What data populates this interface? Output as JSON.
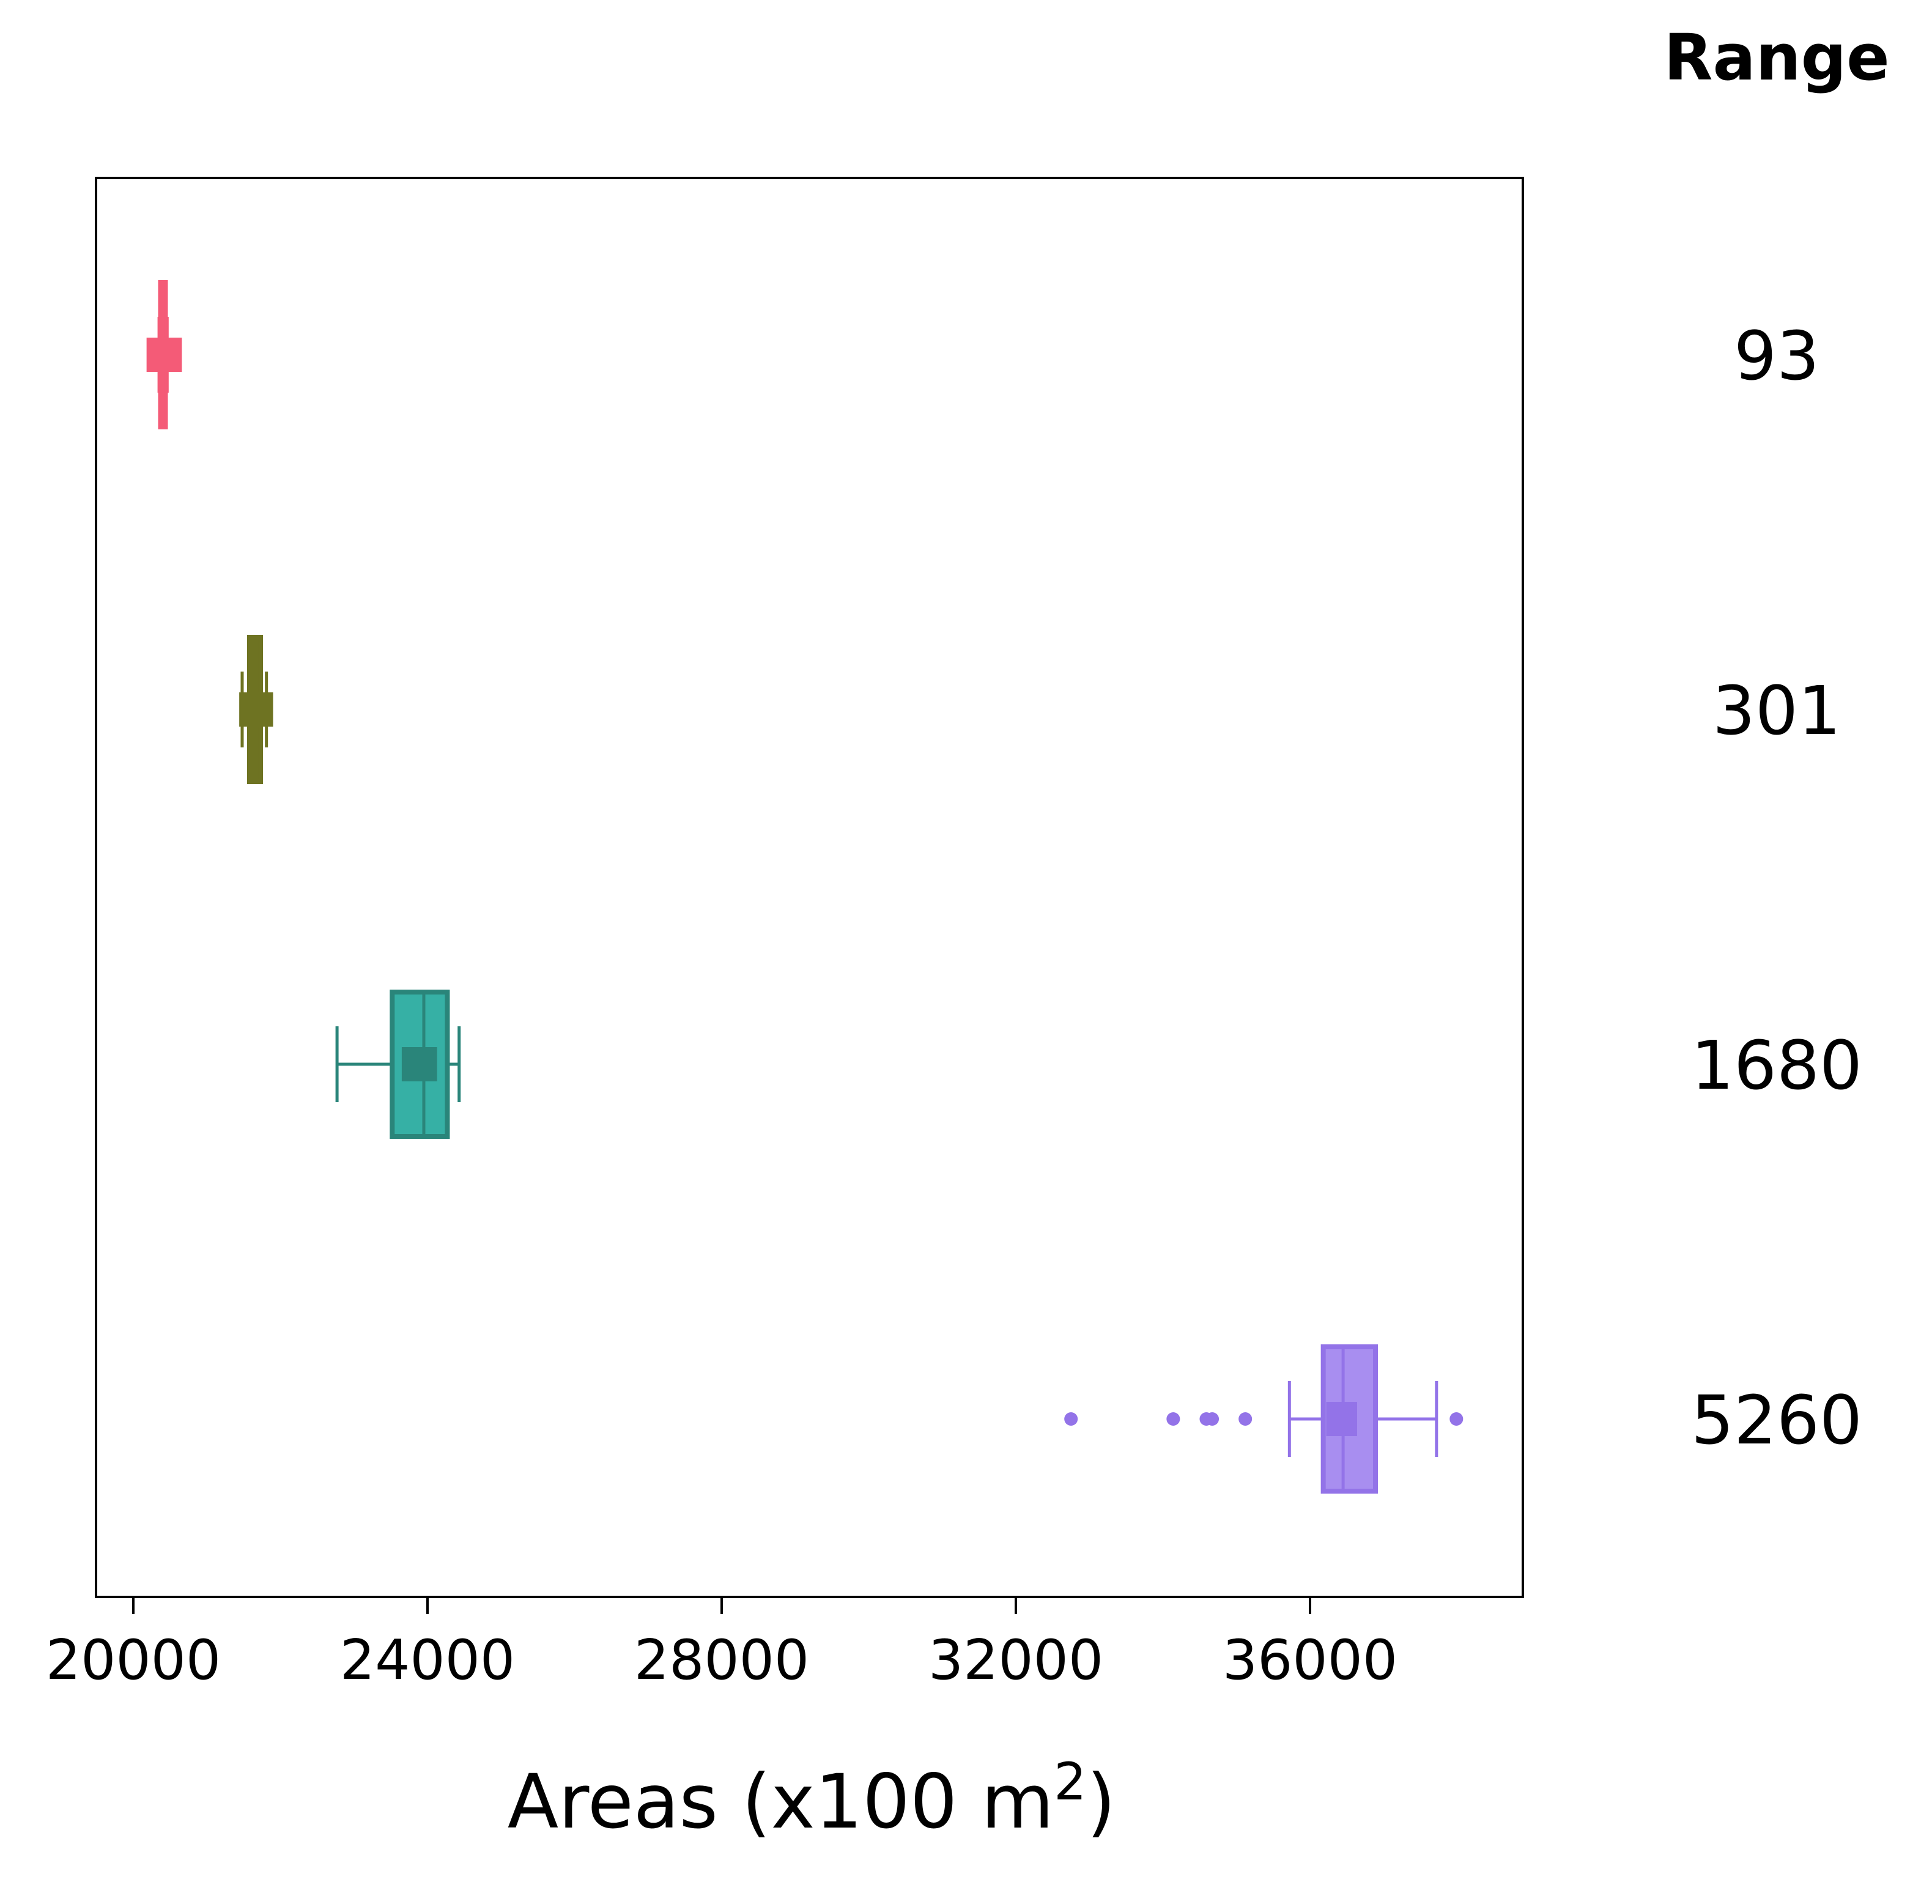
{
  "chart_data": {
    "type": "box",
    "orientation": "horizontal",
    "xlabel": "Areas (x100 m",
    "xlabel_sup": "2",
    "xlabel_suffix": ")",
    "xlim": [
      19500,
      38900
    ],
    "xticks": [
      20000,
      24000,
      28000,
      32000,
      36000
    ],
    "xtick_labels": [
      "20000",
      "24000",
      "28000",
      "32000",
      "36000"
    ],
    "right_header": "Range",
    "grid": false,
    "series": [
      {
        "name": "93",
        "color": "#f45b77",
        "box": [
          20370,
          20400,
          20430
        ],
        "whiskers": [
          20350,
          20460
        ],
        "mean_marker": [
          20180,
          20660
        ],
        "outliers": []
      },
      {
        "name": "301",
        "color": "#6e7322",
        "box": [
          21580,
          21650,
          21730
        ],
        "whiskers": [
          21480,
          21810
        ],
        "mean_marker": [
          21440,
          21900
        ],
        "outliers": []
      },
      {
        "name": "1680",
        "color": "#2a857a",
        "fill": "#36b0a5",
        "box": [
          23520,
          23950,
          24270
        ],
        "whiskers": [
          22770,
          24430
        ],
        "mean_marker": [
          23650,
          24130
        ],
        "outliers": []
      },
      {
        "name": "5260",
        "color": "#9373e8",
        "fill": "#a88ef0",
        "box": [
          36180,
          36450,
          36890
        ],
        "whiskers": [
          35720,
          37720
        ],
        "mean_marker": [
          36220,
          36640
        ],
        "outliers": [
          32750,
          34140,
          34590,
          34670,
          35120,
          37990
        ]
      }
    ]
  }
}
